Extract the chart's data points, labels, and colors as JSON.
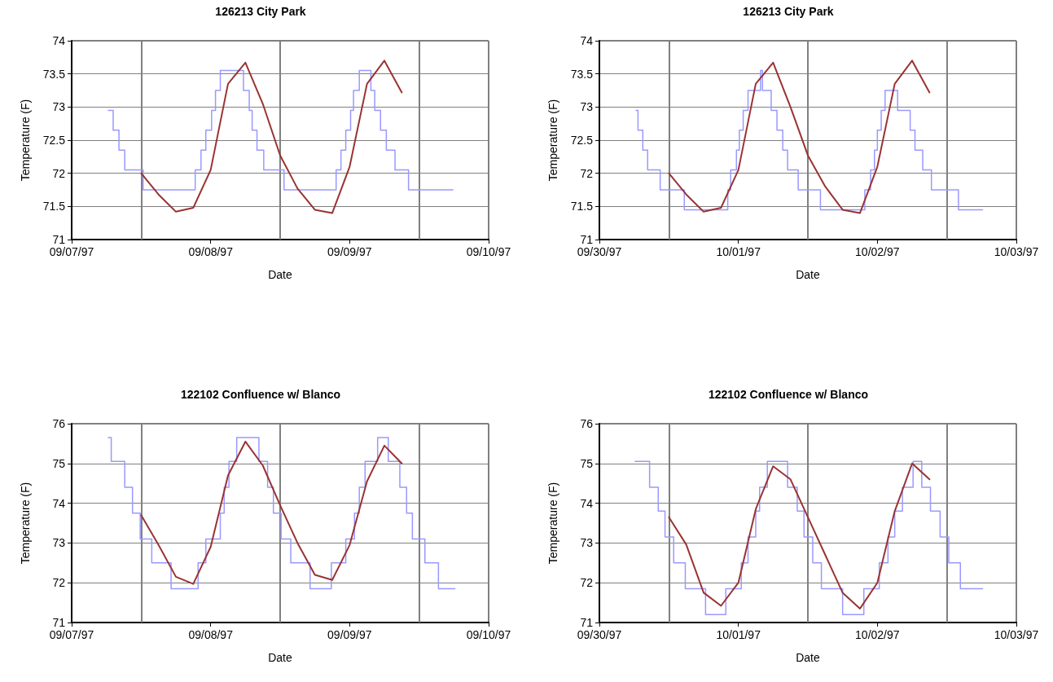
{
  "chart_data": [
    {
      "type": "line",
      "title": "126213 City Park",
      "xlabel": "Date",
      "ylabel": "Temperature (F)",
      "xlim": [
        "1997-09-07",
        "1997-09-10"
      ],
      "xticks": [
        {
          "value": "1997-09-07",
          "label": "09/07/97"
        },
        {
          "value": "1997-09-08",
          "label": "09/08/97"
        },
        {
          "value": "1997-09-09",
          "label": "09/09/97"
        },
        {
          "value": "1997-09-10",
          "label": "09/10/97"
        }
      ],
      "ylim": [
        71,
        74
      ],
      "yticks": [
        71,
        71.5,
        72,
        72.5,
        73,
        73.5,
        74
      ],
      "grid": "y",
      "marker": "none",
      "ref_lines": [
        {
          "axis": "x",
          "value": "1997-09-07T12:00",
          "color": "#808080"
        },
        {
          "axis": "x",
          "value": "1997-09-08T12:00",
          "color": "#808080"
        },
        {
          "axis": "x",
          "value": "1997-09-09T12:00",
          "color": "#808080"
        }
      ],
      "series": [
        {
          "type": "step",
          "color": "#9999ff",
          "x": [
            "1997-09-07T06:20",
            "1997-09-07T07:10",
            "1997-09-07T08:10",
            "1997-09-07T09:10",
            "1997-09-07T12:20",
            "1997-09-07T21:20",
            "1997-09-07T22:20",
            "1997-09-07T23:10",
            "1997-09-08T00:10",
            "1997-09-08T00:50",
            "1997-09-08T01:40",
            "1997-09-08T05:40",
            "1997-09-08T06:40",
            "1997-09-08T07:10",
            "1997-09-08T08:00",
            "1997-09-08T09:10",
            "1997-09-08T12:40",
            "1997-09-08T21:40",
            "1997-09-08T22:30",
            "1997-09-08T23:20",
            "1997-09-09T00:10",
            "1997-09-09T00:40",
            "1997-09-09T01:40",
            "1997-09-09T03:40",
            "1997-09-09T04:20",
            "1997-09-09T05:20",
            "1997-09-09T06:20",
            "1997-09-09T07:50",
            "1997-09-09T10:10",
            "1997-09-09T17:50"
          ],
          "values": [
            72.95,
            72.65,
            72.35,
            72.05,
            71.75,
            72.05,
            72.35,
            72.65,
            72.95,
            73.25,
            73.55,
            73.25,
            72.95,
            72.65,
            72.35,
            72.05,
            71.75,
            72.05,
            72.35,
            72.65,
            72.95,
            73.25,
            73.55,
            73.25,
            72.95,
            72.65,
            72.35,
            72.05,
            71.75,
            71.75
          ]
        },
        {
          "color": "#993333",
          "x": [
            "1997-09-07T12:00",
            "1997-09-07T15:00",
            "1997-09-07T18:00",
            "1997-09-07T21:00",
            "1997-09-08T00:00",
            "1997-09-08T03:00",
            "1997-09-08T06:00",
            "1997-09-08T09:00",
            "1997-09-08T12:00",
            "1997-09-08T15:00",
            "1997-09-08T18:00",
            "1997-09-08T21:00",
            "1997-09-09T00:00",
            "1997-09-09T03:00",
            "1997-09-09T06:00",
            "1997-09-09T09:00"
          ],
          "values": [
            72.0,
            71.68,
            71.42,
            71.48,
            72.05,
            73.35,
            73.67,
            73.05,
            72.27,
            71.77,
            71.45,
            71.4,
            72.1,
            73.35,
            73.7,
            73.22
          ]
        }
      ]
    },
    {
      "type": "line",
      "title": "126213 City Park",
      "xlabel": "Date",
      "ylabel": "Temperature (F)",
      "xlim": [
        "1997-09-30",
        "1997-10-03"
      ],
      "xticks": [
        {
          "value": "1997-09-30",
          "label": "09/30/97"
        },
        {
          "value": "1997-10-01",
          "label": "10/01/97"
        },
        {
          "value": "1997-10-02",
          "label": "10/02/97"
        },
        {
          "value": "1997-10-03",
          "label": "10/03/97"
        }
      ],
      "ylim": [
        71,
        74
      ],
      "yticks": [
        71,
        71.5,
        72,
        72.5,
        73,
        73.5,
        74
      ],
      "grid": "y",
      "marker": "none",
      "ref_lines": [
        {
          "axis": "x",
          "value": "1997-09-30T12:00",
          "color": "#808080"
        },
        {
          "axis": "x",
          "value": "1997-10-01T12:00",
          "color": "#808080"
        },
        {
          "axis": "x",
          "value": "1997-10-02T12:00",
          "color": "#808080"
        }
      ],
      "series": [
        {
          "type": "step",
          "color": "#9999ff",
          "x": [
            "1997-09-30T06:20",
            "1997-09-30T06:40",
            "1997-09-30T07:30",
            "1997-09-30T08:20",
            "1997-09-30T10:30",
            "1997-09-30T14:40",
            "1997-09-30T22:10",
            "1997-09-30T22:40",
            "1997-09-30T23:40",
            "1997-10-01T00:10",
            "1997-10-01T00:50",
            "1997-10-01T01:40",
            "1997-10-01T03:50",
            "1997-10-01T04:10",
            "1997-10-01T05:40",
            "1997-10-01T06:40",
            "1997-10-01T07:40",
            "1997-10-01T08:30",
            "1997-10-01T10:20",
            "1997-10-01T14:10",
            "1997-10-01T21:50",
            "1997-10-01T22:50",
            "1997-10-01T23:30",
            "1997-10-02T00:00",
            "1997-10-02T00:40",
            "1997-10-02T01:20",
            "1997-10-02T03:30",
            "1997-10-02T05:40",
            "1997-10-02T06:30",
            "1997-10-02T07:50",
            "1997-10-02T09:20",
            "1997-10-02T14:00",
            "1997-10-02T18:10"
          ],
          "values": [
            72.95,
            72.65,
            72.35,
            72.05,
            71.75,
            71.45,
            71.75,
            72.05,
            72.35,
            72.65,
            72.95,
            73.25,
            73.55,
            73.25,
            72.95,
            72.65,
            72.35,
            72.05,
            71.75,
            71.45,
            71.75,
            72.05,
            72.35,
            72.65,
            72.95,
            73.25,
            72.95,
            72.65,
            72.35,
            72.05,
            71.75,
            71.45,
            71.45
          ]
        },
        {
          "color": "#993333",
          "x": [
            "1997-09-30T12:00",
            "1997-09-30T15:00",
            "1997-09-30T18:00",
            "1997-09-30T21:00",
            "1997-10-01T00:00",
            "1997-10-01T03:00",
            "1997-10-01T06:00",
            "1997-10-01T09:00",
            "1997-10-01T12:00",
            "1997-10-01T15:00",
            "1997-10-01T18:00",
            "1997-10-01T21:00",
            "1997-10-02T00:00",
            "1997-10-02T03:00",
            "1997-10-02T06:00",
            "1997-10-02T09:00"
          ],
          "values": [
            72.0,
            71.68,
            71.42,
            71.48,
            72.05,
            73.35,
            73.67,
            73.0,
            72.27,
            71.8,
            71.45,
            71.4,
            72.1,
            73.35,
            73.7,
            73.22
          ]
        }
      ]
    },
    {
      "type": "line",
      "title": "122102 Confluence w/ Blanco",
      "xlabel": "Date",
      "ylabel": "Temperature (F)",
      "xlim": [
        "1997-09-07",
        "1997-09-10"
      ],
      "xticks": [
        {
          "value": "1997-09-07",
          "label": "09/07/97"
        },
        {
          "value": "1997-09-08",
          "label": "09/08/97"
        },
        {
          "value": "1997-09-09",
          "label": "09/09/97"
        },
        {
          "value": "1997-09-10",
          "label": "09/10/97"
        }
      ],
      "ylim": [
        71,
        76
      ],
      "yticks": [
        71,
        72,
        73,
        74,
        75,
        76
      ],
      "grid": "y",
      "marker": "none",
      "ref_lines": [
        {
          "axis": "x",
          "value": "1997-09-07T12:00",
          "color": "#808080"
        },
        {
          "axis": "x",
          "value": "1997-09-08T12:00",
          "color": "#808080"
        },
        {
          "axis": "x",
          "value": "1997-09-09T12:00",
          "color": "#808080"
        }
      ],
      "series": [
        {
          "type": "step",
          "color": "#9999ff",
          "x": [
            "1997-09-07T06:20",
            "1997-09-07T06:50",
            "1997-09-07T09:10",
            "1997-09-07T10:30",
            "1997-09-07T11:50",
            "1997-09-07T13:50",
            "1997-09-07T17:10",
            "1997-09-07T21:50",
            "1997-09-07T23:10",
            "1997-09-08T01:40",
            "1997-09-08T02:20",
            "1997-09-08T03:10",
            "1997-09-08T04:30",
            "1997-09-08T08:20",
            "1997-09-08T09:50",
            "1997-09-08T10:50",
            "1997-09-08T12:10",
            "1997-09-08T13:50",
            "1997-09-08T17:10",
            "1997-09-08T20:50",
            "1997-09-08T23:20",
            "1997-09-09T00:50",
            "1997-09-09T01:40",
            "1997-09-09T02:40",
            "1997-09-09T04:50",
            "1997-09-09T06:40",
            "1997-09-09T08:40",
            "1997-09-09T09:50",
            "1997-09-09T10:50",
            "1997-09-09T13:00",
            "1997-09-09T15:20",
            "1997-09-09T18:10"
          ],
          "values": [
            75.65,
            75.05,
            74.4,
            73.75,
            73.1,
            72.5,
            71.85,
            72.5,
            73.1,
            73.75,
            74.4,
            75.05,
            75.65,
            75.05,
            74.4,
            73.75,
            73.1,
            72.5,
            71.85,
            72.5,
            73.1,
            73.75,
            74.4,
            75.05,
            75.65,
            75.05,
            74.4,
            73.75,
            73.1,
            72.5,
            71.85,
            71.85
          ]
        },
        {
          "color": "#993333",
          "x": [
            "1997-09-07T12:00",
            "1997-09-07T15:00",
            "1997-09-07T18:00",
            "1997-09-07T21:00",
            "1997-09-08T00:00",
            "1997-09-08T03:00",
            "1997-09-08T06:00",
            "1997-09-08T09:00",
            "1997-09-08T12:00",
            "1997-09-08T15:00",
            "1997-09-08T18:00",
            "1997-09-08T21:00",
            "1997-09-09T00:00",
            "1997-09-09T03:00",
            "1997-09-09T06:00",
            "1997-09-09T09:00"
          ],
          "values": [
            73.7,
            72.95,
            72.15,
            71.97,
            72.9,
            74.7,
            75.55,
            74.95,
            73.95,
            73.0,
            72.2,
            72.07,
            72.95,
            74.55,
            75.45,
            75.0
          ]
        }
      ]
    },
    {
      "type": "line",
      "title": "122102 Confluence w/ Blanco",
      "xlabel": "Date",
      "ylabel": "Temperature (F)",
      "xlim": [
        "1997-09-30",
        "1997-10-03"
      ],
      "xticks": [
        {
          "value": "1997-09-30",
          "label": "09/30/97"
        },
        {
          "value": "1997-10-01",
          "label": "10/01/97"
        },
        {
          "value": "1997-10-02",
          "label": "10/02/97"
        },
        {
          "value": "1997-10-03",
          "label": "10/03/97"
        }
      ],
      "ylim": [
        71,
        76
      ],
      "yticks": [
        71,
        72,
        73,
        74,
        75,
        76
      ],
      "grid": "y",
      "marker": "none",
      "ref_lines": [
        {
          "axis": "x",
          "value": "1997-09-30T12:00",
          "color": "#808080"
        },
        {
          "axis": "x",
          "value": "1997-10-01T12:00",
          "color": "#808080"
        },
        {
          "axis": "x",
          "value": "1997-10-02T12:00",
          "color": "#808080"
        }
      ],
      "series": [
        {
          "type": "step",
          "color": "#9999ff",
          "x": [
            "1997-09-30T06:10",
            "1997-09-30T08:40",
            "1997-09-30T10:10",
            "1997-09-30T11:20",
            "1997-09-30T12:50",
            "1997-09-30T14:50",
            "1997-09-30T18:20",
            "1997-09-30T21:50",
            "1997-10-01T00:30",
            "1997-10-01T01:40",
            "1997-10-01T03:00",
            "1997-10-01T03:40",
            "1997-10-01T05:00",
            "1997-10-01T08:30",
            "1997-10-01T10:10",
            "1997-10-01T11:20",
            "1997-10-01T12:50",
            "1997-10-01T14:20",
            "1997-10-01T18:00",
            "1997-10-01T21:40",
            "1997-10-02T00:20",
            "1997-10-02T01:50",
            "1997-10-02T03:00",
            "1997-10-02T04:20",
            "1997-10-02T06:10",
            "1997-10-02T07:40",
            "1997-10-02T09:10",
            "1997-10-02T10:50",
            "1997-10-02T12:20",
            "1997-10-02T14:20",
            "1997-10-02T18:10"
          ],
          "values": [
            75.05,
            74.4,
            73.8,
            73.15,
            72.5,
            71.85,
            71.2,
            71.85,
            72.5,
            73.15,
            73.8,
            74.4,
            75.05,
            74.4,
            73.8,
            73.15,
            72.5,
            71.85,
            71.2,
            71.85,
            72.5,
            73.15,
            73.8,
            74.4,
            75.05,
            74.4,
            73.8,
            73.15,
            72.5,
            71.85,
            71.85
          ]
        },
        {
          "color": "#993333",
          "x": [
            "1997-09-30T12:00",
            "1997-09-30T15:00",
            "1997-09-30T18:00",
            "1997-09-30T21:00",
            "1997-10-01T00:00",
            "1997-10-01T03:00",
            "1997-10-01T06:00",
            "1997-10-01T09:00",
            "1997-10-01T12:00",
            "1997-10-01T15:00",
            "1997-10-01T18:00",
            "1997-10-01T21:00",
            "1997-10-02T00:00",
            "1997-10-02T03:00",
            "1997-10-02T06:00",
            "1997-10-02T09:00"
          ],
          "values": [
            73.65,
            72.96,
            71.75,
            71.42,
            72.0,
            73.85,
            74.93,
            74.6,
            73.65,
            72.7,
            71.75,
            71.35,
            72.0,
            73.8,
            75.0,
            74.6
          ]
        }
      ]
    }
  ]
}
